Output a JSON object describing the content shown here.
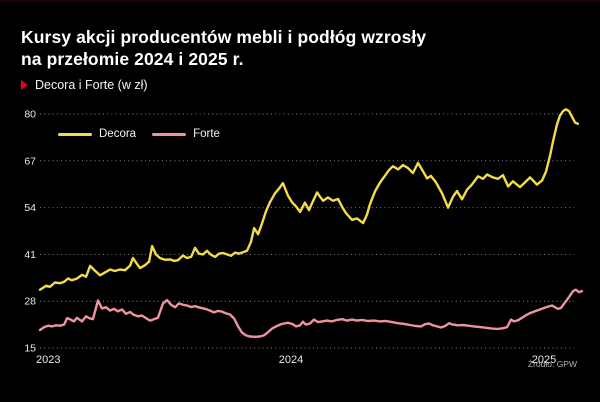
{
  "header": {
    "title_lines": [
      "Kursy akcji producentów mebli i podłóg wzrosły",
      "na przełomie 2024 i 2025 r."
    ],
    "subtitle": "Decora i Forte (w zł)"
  },
  "footer": {
    "source": "Źródło: GPW"
  },
  "colors": {
    "background": "#000000",
    "title": "#ffffff",
    "accent_red": "#e3001b",
    "grid": "#9b9b9b",
    "tick_label": "#e9e9e9",
    "decora_line": "#f2dd49",
    "forte_line": "#f0929f",
    "source_text": "#b3b3b3"
  },
  "chart_data": {
    "type": "line",
    "title": "Kursy akcji producentów mebli i podłóg wzrosły na przełomie 2024 i 2025 r.",
    "subtitle": "Decora i Forte (w zł)",
    "unit": "zł",
    "ylim": [
      15,
      80
    ],
    "y_ticks": [
      15,
      28,
      41,
      54,
      67,
      80
    ],
    "x_ticks": [
      2023,
      2024,
      2025
    ],
    "grid": "horizontal-dotted",
    "legend_position": "top-left-inside",
    "series": [
      {
        "name": "Decora",
        "color": "#f2dd49",
        "points": [
          [
            2023.008,
            31.2
          ],
          [
            2023.032,
            32.3
          ],
          [
            2023.047,
            32.0
          ],
          [
            2023.067,
            33.2
          ],
          [
            2023.087,
            33.0
          ],
          [
            2023.103,
            33.4
          ],
          [
            2023.119,
            34.3
          ],
          [
            2023.134,
            33.8
          ],
          [
            2023.154,
            34.3
          ],
          [
            2023.174,
            35.3
          ],
          [
            2023.19,
            34.8
          ],
          [
            2023.206,
            37.8
          ],
          [
            2023.225,
            36.5
          ],
          [
            2023.245,
            35.2
          ],
          [
            2023.265,
            36.0
          ],
          [
            2023.285,
            36.8
          ],
          [
            2023.304,
            36.4
          ],
          [
            2023.324,
            36.8
          ],
          [
            2023.344,
            36.6
          ],
          [
            2023.364,
            37.9
          ],
          [
            2023.375,
            40.0
          ],
          [
            2023.387,
            38.8
          ],
          [
            2023.403,
            37.2
          ],
          [
            2023.423,
            38.0
          ],
          [
            2023.439,
            39.0
          ],
          [
            2023.451,
            43.3
          ],
          [
            2023.466,
            41.0
          ],
          [
            2023.482,
            40.0
          ],
          [
            2023.502,
            39.5
          ],
          [
            2023.522,
            39.6
          ],
          [
            2023.538,
            39.2
          ],
          [
            2023.553,
            39.4
          ],
          [
            2023.573,
            40.7
          ],
          [
            2023.589,
            40.0
          ],
          [
            2023.605,
            40.3
          ],
          [
            2023.621,
            42.8
          ],
          [
            2023.636,
            41.2
          ],
          [
            2023.652,
            41.0
          ],
          [
            2023.668,
            42.0
          ],
          [
            2023.684,
            40.9
          ],
          [
            2023.7,
            40.3
          ],
          [
            2023.715,
            41.2
          ],
          [
            2023.731,
            41.4
          ],
          [
            2023.747,
            41.0
          ],
          [
            2023.763,
            40.6
          ],
          [
            2023.779,
            41.5
          ],
          [
            2023.794,
            41.2
          ],
          [
            2023.81,
            41.6
          ],
          [
            2023.826,
            42.0
          ],
          [
            2023.842,
            44.5
          ],
          [
            2023.854,
            48.3
          ],
          [
            2023.87,
            46.6
          ],
          [
            2023.885,
            49.5
          ],
          [
            2023.901,
            53.0
          ],
          [
            2023.917,
            55.5
          ],
          [
            2023.937,
            58.0
          ],
          [
            2023.953,
            59.3
          ],
          [
            2023.968,
            60.8
          ],
          [
            2023.988,
            57.3
          ],
          [
            2024.004,
            55.5
          ],
          [
            2024.02,
            54.3
          ],
          [
            2024.036,
            52.8
          ],
          [
            2024.055,
            55.4
          ],
          [
            2024.071,
            53.3
          ],
          [
            2024.087,
            55.8
          ],
          [
            2024.103,
            58.2
          ],
          [
            2024.115,
            57.0
          ],
          [
            2024.127,
            55.9
          ],
          [
            2024.146,
            56.8
          ],
          [
            2024.166,
            55.9
          ],
          [
            2024.186,
            56.4
          ],
          [
            2024.202,
            54.2
          ],
          [
            2024.217,
            52.5
          ],
          [
            2024.241,
            50.6
          ],
          [
            2024.261,
            51.0
          ],
          [
            2024.285,
            49.7
          ],
          [
            2024.3,
            52.0
          ],
          [
            2024.312,
            54.9
          ],
          [
            2024.332,
            58.5
          ],
          [
            2024.352,
            61.0
          ],
          [
            2024.372,
            62.9
          ],
          [
            2024.387,
            64.4
          ],
          [
            2024.403,
            65.5
          ],
          [
            2024.423,
            64.6
          ],
          [
            2024.443,
            65.8
          ],
          [
            2024.462,
            65.0
          ],
          [
            2024.482,
            63.6
          ],
          [
            2024.502,
            66.4
          ],
          [
            2024.518,
            64.5
          ],
          [
            2024.538,
            62.1
          ],
          [
            2024.553,
            62.8
          ],
          [
            2024.573,
            61.0
          ],
          [
            2024.597,
            58.0
          ],
          [
            2024.621,
            54.0
          ],
          [
            2024.64,
            57.0
          ],
          [
            2024.656,
            58.6
          ],
          [
            2024.676,
            56.3
          ],
          [
            2024.696,
            59.0
          ],
          [
            2024.715,
            60.4
          ],
          [
            2024.739,
            62.7
          ],
          [
            2024.759,
            62.0
          ],
          [
            2024.775,
            63.2
          ],
          [
            2024.798,
            62.4
          ],
          [
            2024.818,
            62.0
          ],
          [
            2024.838,
            63.0
          ],
          [
            2024.858,
            59.9
          ],
          [
            2024.877,
            61.3
          ],
          [
            2024.905,
            59.7
          ],
          [
            2024.925,
            61.0
          ],
          [
            2024.945,
            62.4
          ],
          [
            2024.972,
            60.4
          ],
          [
            2024.992,
            61.5
          ],
          [
            2025.008,
            64.0
          ],
          [
            2025.024,
            68.5
          ],
          [
            2025.036,
            72.5
          ],
          [
            2025.051,
            77.0
          ],
          [
            2025.063,
            79.5
          ],
          [
            2025.075,
            80.8
          ],
          [
            2025.087,
            81.3
          ],
          [
            2025.099,
            80.8
          ],
          [
            2025.111,
            79.2
          ],
          [
            2025.123,
            77.6
          ],
          [
            2025.134,
            77.3
          ]
        ]
      },
      {
        "name": "Forte",
        "color": "#f0929f",
        "points": [
          [
            2023.008,
            20.0
          ],
          [
            2023.024,
            20.8
          ],
          [
            2023.04,
            21.2
          ],
          [
            2023.055,
            21.0
          ],
          [
            2023.071,
            21.3
          ],
          [
            2023.087,
            21.2
          ],
          [
            2023.103,
            21.5
          ],
          [
            2023.115,
            23.3
          ],
          [
            2023.126,
            23.0
          ],
          [
            2023.142,
            22.4
          ],
          [
            2023.154,
            23.4
          ],
          [
            2023.174,
            22.4
          ],
          [
            2023.19,
            23.8
          ],
          [
            2023.202,
            23.3
          ],
          [
            2023.217,
            23.0
          ],
          [
            2023.237,
            28.2
          ],
          [
            2023.253,
            26.0
          ],
          [
            2023.269,
            26.3
          ],
          [
            2023.285,
            25.4
          ],
          [
            2023.3,
            25.9
          ],
          [
            2023.316,
            25.2
          ],
          [
            2023.332,
            25.7
          ],
          [
            2023.348,
            24.5
          ],
          [
            2023.364,
            25.0
          ],
          [
            2023.379,
            24.2
          ],
          [
            2023.395,
            23.8
          ],
          [
            2023.411,
            24.0
          ],
          [
            2023.427,
            23.3
          ],
          [
            2023.443,
            22.6
          ],
          [
            2023.458,
            23.0
          ],
          [
            2023.474,
            23.4
          ],
          [
            2023.494,
            27.4
          ],
          [
            2023.51,
            28.3
          ],
          [
            2023.526,
            27.0
          ],
          [
            2023.542,
            26.3
          ],
          [
            2023.557,
            27.4
          ],
          [
            2023.573,
            27.0
          ],
          [
            2023.589,
            26.8
          ],
          [
            2023.605,
            26.4
          ],
          [
            2023.621,
            26.6
          ],
          [
            2023.64,
            26.2
          ],
          [
            2023.66,
            25.9
          ],
          [
            2023.68,
            25.4
          ],
          [
            2023.696,
            24.9
          ],
          [
            2023.711,
            25.3
          ],
          [
            2023.727,
            25.1
          ],
          [
            2023.743,
            24.6
          ],
          [
            2023.759,
            24.3
          ],
          [
            2023.775,
            23.2
          ],
          [
            2023.791,
            21.0
          ],
          [
            2023.806,
            19.3
          ],
          [
            2023.822,
            18.5
          ],
          [
            2023.838,
            18.2
          ],
          [
            2023.858,
            18.1
          ],
          [
            2023.877,
            18.2
          ],
          [
            2023.893,
            18.5
          ],
          [
            2023.909,
            19.4
          ],
          [
            2023.925,
            20.4
          ],
          [
            2023.941,
            21.0
          ],
          [
            2023.957,
            21.5
          ],
          [
            2023.972,
            21.8
          ],
          [
            2023.988,
            22.0
          ],
          [
            2024.004,
            21.7
          ],
          [
            2024.02,
            21.0
          ],
          [
            2024.036,
            21.3
          ],
          [
            2024.047,
            22.3
          ],
          [
            2024.059,
            21.5
          ],
          [
            2024.075,
            21.8
          ],
          [
            2024.091,
            22.9
          ],
          [
            2024.107,
            22.2
          ],
          [
            2024.123,
            22.4
          ],
          [
            2024.142,
            22.6
          ],
          [
            2024.162,
            22.4
          ],
          [
            2024.182,
            22.8
          ],
          [
            2024.202,
            23.0
          ],
          [
            2024.221,
            22.6
          ],
          [
            2024.241,
            22.9
          ],
          [
            2024.261,
            22.6
          ],
          [
            2024.281,
            22.8
          ],
          [
            2024.304,
            22.5
          ],
          [
            2024.328,
            22.6
          ],
          [
            2024.352,
            22.4
          ],
          [
            2024.375,
            22.5
          ],
          [
            2024.399,
            22.2
          ],
          [
            2024.423,
            21.9
          ],
          [
            2024.447,
            21.7
          ],
          [
            2024.47,
            21.4
          ],
          [
            2024.494,
            21.1
          ],
          [
            2024.514,
            21.0
          ],
          [
            2024.53,
            21.6
          ],
          [
            2024.545,
            21.8
          ],
          [
            2024.561,
            21.3
          ],
          [
            2024.577,
            21.0
          ],
          [
            2024.593,
            20.7
          ],
          [
            2024.609,
            21.1
          ],
          [
            2024.625,
            21.9
          ],
          [
            2024.64,
            21.5
          ],
          [
            2024.66,
            21.3
          ],
          [
            2024.68,
            21.4
          ],
          [
            2024.7,
            21.2
          ],
          [
            2024.723,
            21.0
          ],
          [
            2024.747,
            20.8
          ],
          [
            2024.771,
            20.6
          ],
          [
            2024.794,
            20.4
          ],
          [
            2024.818,
            20.3
          ],
          [
            2024.838,
            20.5
          ],
          [
            2024.854,
            20.8
          ],
          [
            2024.87,
            22.9
          ],
          [
            2024.881,
            22.4
          ],
          [
            2024.897,
            22.7
          ],
          [
            2024.913,
            23.4
          ],
          [
            2024.929,
            24.1
          ],
          [
            2024.945,
            24.7
          ],
          [
            2024.964,
            25.2
          ],
          [
            2024.984,
            25.7
          ],
          [
            2025.0,
            26.1
          ],
          [
            2025.016,
            26.5
          ],
          [
            2025.032,
            26.8
          ],
          [
            2025.043,
            26.3
          ],
          [
            2025.055,
            25.9
          ],
          [
            2025.067,
            26.1
          ],
          [
            2025.079,
            27.3
          ],
          [
            2025.091,
            28.4
          ],
          [
            2025.103,
            29.6
          ],
          [
            2025.115,
            30.8
          ],
          [
            2025.126,
            31.2
          ],
          [
            2025.138,
            30.5
          ],
          [
            2025.15,
            30.8
          ]
        ]
      }
    ]
  }
}
